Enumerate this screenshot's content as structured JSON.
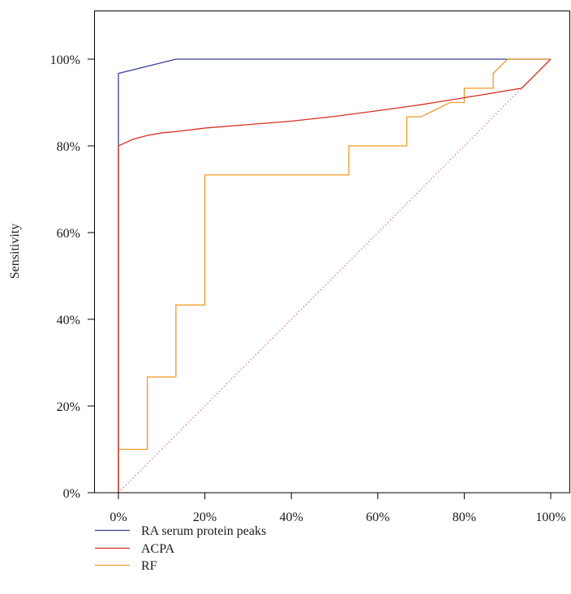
{
  "chart_data": {
    "type": "line",
    "ylabel": "Sensitivity",
    "xlim": [
      0,
      100
    ],
    "ylim": [
      0,
      100
    ],
    "x_tick_values": [
      0,
      20,
      40,
      60,
      80,
      100
    ],
    "x_tick_labels": [
      "0%",
      "20%",
      "40%",
      "60%",
      "80%",
      "100%"
    ],
    "y_tick_values": [
      0,
      20,
      40,
      60,
      80,
      100
    ],
    "y_tick_labels": [
      "0%",
      "20%",
      "40%",
      "60%",
      "80%",
      "100%"
    ],
    "grid": false,
    "legend_position": "bottom-left",
    "series": [
      {
        "name": "RA serum protein peaks",
        "color": "#3a3f97",
        "points": [
          [
            0,
            0
          ],
          [
            0,
            96.7
          ],
          [
            13.3,
            100
          ],
          [
            100,
            100
          ]
        ]
      },
      {
        "name": "ACPA",
        "color": "#d7301f",
        "points": [
          [
            0,
            0
          ],
          [
            0,
            80
          ],
          [
            3.3,
            81.5
          ],
          [
            6.7,
            82.4
          ],
          [
            10,
            83
          ],
          [
            13.3,
            83.3
          ],
          [
            20,
            84.1
          ],
          [
            30,
            84.9
          ],
          [
            40,
            85.7
          ],
          [
            50,
            86.8
          ],
          [
            60,
            88.1
          ],
          [
            70,
            89.5
          ],
          [
            80,
            91.1
          ],
          [
            93.3,
            93.3
          ],
          [
            100,
            100
          ]
        ]
      },
      {
        "name": "RF",
        "color": "#ee9a22",
        "points": [
          [
            0,
            0
          ],
          [
            0,
            10
          ],
          [
            6.7,
            10
          ],
          [
            6.7,
            26.7
          ],
          [
            13.3,
            26.7
          ],
          [
            13.3,
            43.3
          ],
          [
            20,
            43.3
          ],
          [
            20,
            73.3
          ],
          [
            53.3,
            73.3
          ],
          [
            53.3,
            80
          ],
          [
            66.7,
            80
          ],
          [
            66.7,
            86.7
          ],
          [
            70,
            86.7
          ],
          [
            76.7,
            90
          ],
          [
            80,
            90
          ],
          [
            80,
            93.3
          ],
          [
            86.7,
            93.3
          ],
          [
            86.7,
            96.7
          ],
          [
            90,
            100
          ],
          [
            100,
            100
          ]
        ]
      }
    ],
    "reference_line": {
      "color": "#cc4fa0",
      "style": "dotted",
      "points": [
        [
          0,
          0
        ],
        [
          100,
          100
        ]
      ]
    }
  }
}
